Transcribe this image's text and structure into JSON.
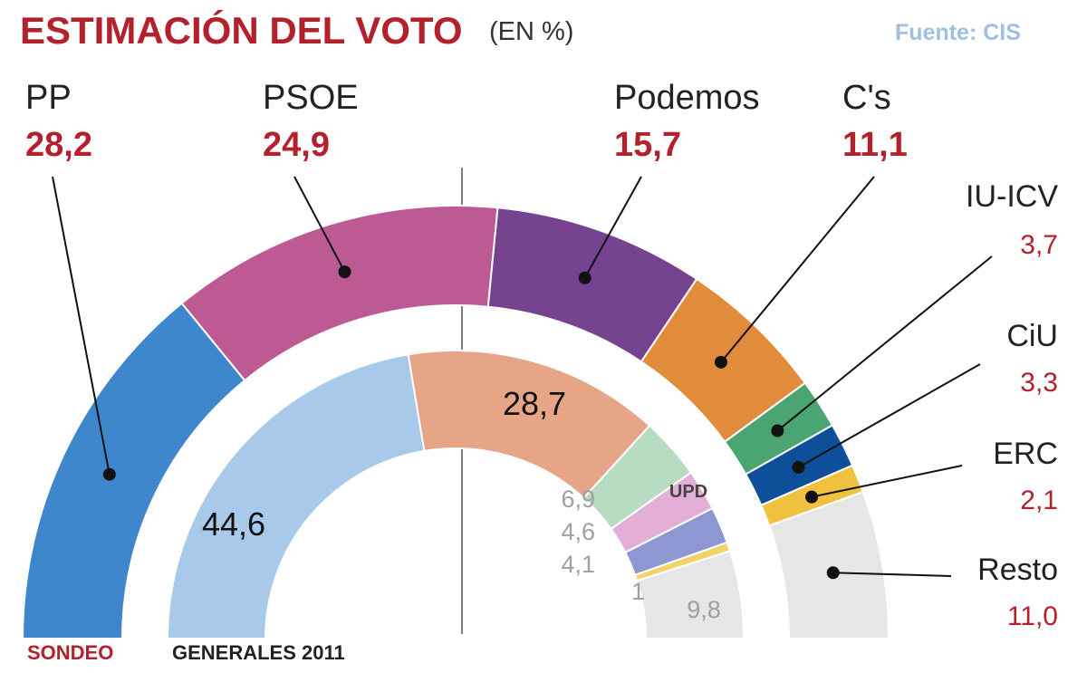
{
  "header": {
    "title": "ESTIMACIÓN DEL VOTO",
    "unit": "(EN %)",
    "source": "Fuente: CIS"
  },
  "footer": {
    "outer_label": "SONDEO",
    "inner_label": "GENERALES 2011"
  },
  "colors": {
    "accent_red": "#b3222c",
    "source_blue": "#9fc0e2"
  },
  "chart_data": [
    {
      "type": "pie",
      "variant": "semicircle-ring",
      "name": "SONDEO",
      "slices": [
        {
          "label": "PP",
          "value": 28.2,
          "display": "28,2",
          "color": "#3f87cc"
        },
        {
          "label": "PSOE",
          "value": 24.9,
          "display": "24,9",
          "color": "#bd5a94"
        },
        {
          "label": "Podemos",
          "value": 15.7,
          "display": "15,7",
          "color": "#764390"
        },
        {
          "label": "C's",
          "value": 11.1,
          "display": "11,1",
          "color": "#e08c3a"
        },
        {
          "label": "IU-ICV",
          "value": 3.7,
          "display": "3,7",
          "color": "#4aa573"
        },
        {
          "label": "CiU",
          "value": 3.3,
          "display": "3,3",
          "color": "#0e4f99"
        },
        {
          "label": "ERC",
          "value": 2.1,
          "display": "2,1",
          "color": "#f0c13f"
        },
        {
          "label": "Resto",
          "value": 11.0,
          "display": "11,0",
          "color": "#e6e6e6"
        }
      ]
    },
    {
      "type": "pie",
      "variant": "semicircle-ring",
      "name": "GENERALES 2011",
      "slices": [
        {
          "label": "",
          "value": 44.6,
          "display": "44,6",
          "color": "#a9c9ea"
        },
        {
          "label": "",
          "value": 28.7,
          "display": "28,7",
          "color": "#e6a586"
        },
        {
          "label": "",
          "value": 6.9,
          "display": "6,9",
          "color": "#b7dcc1"
        },
        {
          "label": "UPD",
          "value": 4.6,
          "display": "4,6",
          "color": "#e3afd6"
        },
        {
          "label": "",
          "value": 4.1,
          "display": "4,1",
          "color": "#8d97d2"
        },
        {
          "label": "",
          "value": 1,
          "display": "1",
          "color": "#f2d36a"
        },
        {
          "label": "",
          "value": 9.8,
          "display": "9,8",
          "color": "#e6e6e6"
        }
      ]
    }
  ]
}
